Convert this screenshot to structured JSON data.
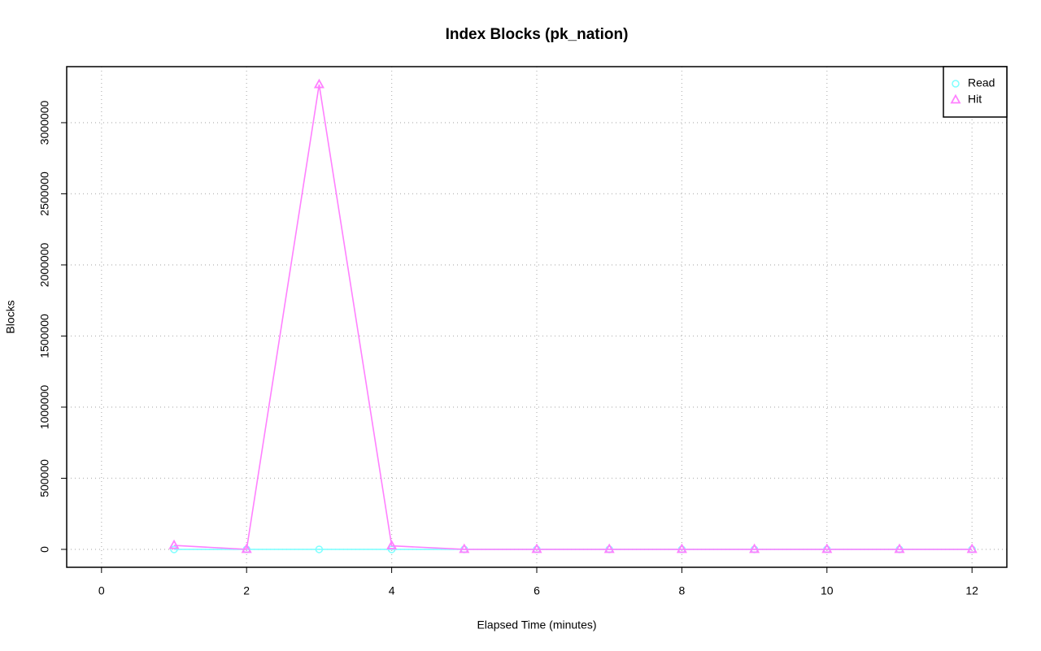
{
  "chart_data": {
    "type": "line",
    "title": "Index Blocks (pk_nation)",
    "x_label": "Elapsed Time (minutes)",
    "y_label": "Blocks",
    "x": [
      1,
      2,
      3,
      4,
      5,
      6,
      7,
      8,
      9,
      10,
      11,
      12
    ],
    "series": [
      {
        "name": "Read",
        "color": "#7fffff",
        "marker": "circle",
        "values": [
          0,
          0,
          0,
          0,
          0,
          0,
          0,
          0,
          0,
          0,
          0,
          0
        ]
      },
      {
        "name": "Hit",
        "color": "#ff80ff",
        "marker": "triangle",
        "values": [
          28000,
          0,
          3268000,
          25000,
          0,
          0,
          0,
          0,
          0,
          0,
          0,
          0
        ]
      }
    ],
    "xlim": [
      -0.48,
      12.48
    ],
    "ylim": [
      -126000,
      3394000
    ],
    "xticks": [
      0,
      2,
      4,
      6,
      8,
      10,
      12
    ],
    "yticks": [
      0,
      500000,
      1000000,
      1500000,
      2000000,
      2500000,
      3000000
    ],
    "grid": true,
    "legend": "top-right"
  }
}
